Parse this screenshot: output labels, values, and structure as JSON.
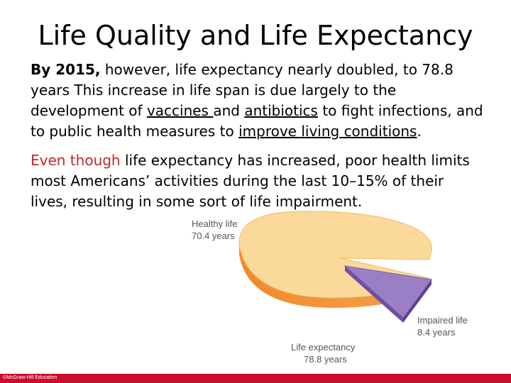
{
  "slide": {
    "title": "Life Quality and Life Expectancy",
    "paragraph1": {
      "lead": "By 2015,",
      "text1": " however, life expectancy nearly doubled, to 78.8 years This increase in life span is due largely to the development of ",
      "vaccines": "vaccines ",
      "text2": "and ",
      "antibiotics": "antibiotics",
      "text3": " to fight infections, and to public health measures to ",
      "living": "improve living conditions",
      "text4": "."
    },
    "paragraph2": {
      "lead": "Even though",
      "text": " life expectancy has increased, poor health limits most Americans’ activities during the last 10–15% of their lives, resulting in some sort of life impairment."
    }
  },
  "chart_data": {
    "type": "pie",
    "slices": [
      {
        "label": "Healthy life",
        "value_label": "70.4 years",
        "value": 70.4,
        "color": "#fbd99a"
      },
      {
        "label": "Impaired life",
        "value_label": "8.4 years",
        "value": 8.4,
        "color": "#9b7fc4"
      }
    ],
    "total": {
      "label": "Life expectancy",
      "value_label": "78.8 years",
      "value": 78.8
    }
  },
  "footer": {
    "copyright": "©McGraw-Hill Education"
  }
}
